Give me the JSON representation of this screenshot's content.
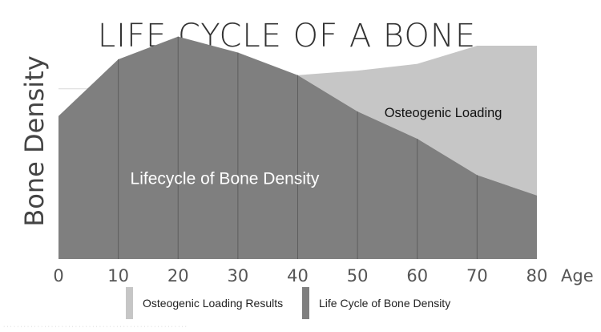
{
  "chart_data": {
    "type": "area",
    "title": "LIFE CYCLE OF A BONE",
    "xlabel": "Age",
    "ylabel": "Bone Density",
    "x": [
      0,
      10,
      20,
      30,
      40,
      50,
      60,
      70,
      80
    ],
    "x_ticks": [
      "0",
      "10",
      "20",
      "30",
      "40",
      "50",
      "60",
      "70",
      "80"
    ],
    "xlim": [
      0,
      80
    ],
    "ylim": [
      0,
      100
    ],
    "series": [
      {
        "name": "Life Cycle of Bone Density",
        "color": "#7f7f7f",
        "values": [
          63,
          88,
          98,
          91,
          81,
          65,
          53,
          37,
          28
        ]
      },
      {
        "name": "Osteogenic Loading Results",
        "color": "#c6c6c6",
        "values": [
          null,
          null,
          null,
          null,
          81,
          83,
          86,
          94,
          94
        ]
      }
    ],
    "annotations": [
      {
        "text": "Lifecycle of Bone Density",
        "series": 0
      },
      {
        "text": "Osteogenic Loading",
        "series": 1
      }
    ],
    "grid": "horizontal",
    "legend": "bottom"
  },
  "legend": [
    {
      "label": "Osteogenic Loading Results",
      "color": "#c6c6c6"
    },
    {
      "label": "Life Cycle of Bone Density",
      "color": "#7f7f7f"
    }
  ],
  "caption": "· · · · · · · · · · · · · · · · · · · · · · · · · · · · · · · · · · · · · · · · · · · · · · · · · · · · · ·"
}
